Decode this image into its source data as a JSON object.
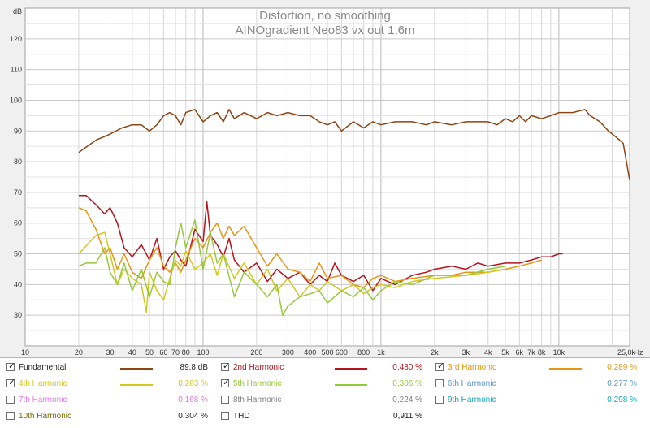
{
  "chart_data": {
    "type": "line",
    "title": "Distortion, no smoothing",
    "subtitle": "AINOgradient Neo83 vx out 1,6m",
    "ylabel": "dB",
    "xunit": "Hz",
    "xscale": "log",
    "xlim": [
      10,
      25000
    ],
    "ylim": [
      20,
      130
    ],
    "grid": true,
    "x_ticks": [
      {
        "v": 10,
        "label": "10"
      },
      {
        "v": 20,
        "label": "20"
      },
      {
        "v": 30,
        "label": "30"
      },
      {
        "v": 40,
        "label": "40"
      },
      {
        "v": 50,
        "label": "50"
      },
      {
        "v": 60,
        "label": "60"
      },
      {
        "v": 70,
        "label": "70"
      },
      {
        "v": 80,
        "label": "80"
      },
      {
        "v": 100,
        "label": "100"
      },
      {
        "v": 200,
        "label": "200"
      },
      {
        "v": 300,
        "label": "300"
      },
      {
        "v": 400,
        "label": "400"
      },
      {
        "v": 500,
        "label": "500"
      },
      {
        "v": 600,
        "label": "600"
      },
      {
        "v": 800,
        "label": "800"
      },
      {
        "v": 1000,
        "label": "1k"
      },
      {
        "v": 2000,
        "label": "2k"
      },
      {
        "v": 3000,
        "label": "3k"
      },
      {
        "v": 4000,
        "label": "4k"
      },
      {
        "v": 5000,
        "label": "5k"
      },
      {
        "v": 6000,
        "label": "6k"
      },
      {
        "v": 7000,
        "label": "7k"
      },
      {
        "v": 8000,
        "label": "8k"
      },
      {
        "v": 10000,
        "label": "10k"
      },
      {
        "v": 25000,
        "label": "25,0k"
      }
    ],
    "y_ticks": [
      30,
      40,
      50,
      60,
      70,
      80,
      90,
      100,
      110,
      120
    ],
    "series": [
      {
        "name": "Fundamental",
        "color": "#8b4513",
        "value": "89,8 dB",
        "checked": true,
        "x": [
          20,
          25,
          30,
          35,
          40,
          45,
          50,
          55,
          60,
          65,
          70,
          75,
          80,
          90,
          100,
          110,
          120,
          130,
          140,
          150,
          170,
          200,
          230,
          260,
          300,
          350,
          400,
          450,
          500,
          550,
          600,
          700,
          800,
          900,
          1000,
          1200,
          1500,
          1800,
          2000,
          2500,
          3000,
          3500,
          4000,
          4500,
          5000,
          5500,
          6000,
          6500,
          7000,
          8000,
          9000,
          10000,
          12000,
          14000,
          15000,
          17000,
          19000,
          21000,
          23000,
          25000
        ],
        "y": [
          83,
          87,
          89,
          91,
          92,
          92,
          90,
          92,
          95,
          96,
          95,
          92,
          96,
          97,
          93,
          95,
          96,
          93,
          97,
          94,
          96,
          94,
          96,
          95,
          96,
          95,
          95,
          93,
          92,
          93,
          90,
          93,
          91,
          93,
          92,
          93,
          93,
          92,
          93,
          92,
          93,
          93,
          93,
          92,
          94,
          93,
          95,
          93,
          95,
          94,
          95,
          96,
          96,
          97,
          95,
          93,
          90,
          88,
          86,
          74
        ]
      },
      {
        "name": "2nd Harmonic",
        "color": "#b4141e",
        "value": "0,480 %",
        "checked": true,
        "x": [
          20,
          22,
          25,
          28,
          30,
          33,
          36,
          40,
          45,
          50,
          55,
          60,
          65,
          70,
          75,
          80,
          90,
          100,
          105,
          110,
          120,
          130,
          140,
          150,
          170,
          200,
          230,
          260,
          300,
          350,
          400,
          450,
          500,
          550,
          600,
          700,
          800,
          900,
          1000,
          1200,
          1500,
          1800,
          2000,
          2500,
          3000,
          3500,
          4000,
          5000,
          6000,
          7000,
          8000,
          9000,
          10000,
          10500
        ],
        "y": [
          69,
          69,
          66,
          63,
          65,
          60,
          52,
          49,
          53,
          48,
          55,
          45,
          49,
          51,
          48,
          46,
          58,
          54,
          67,
          56,
          53,
          49,
          55,
          48,
          44,
          47,
          41,
          45,
          42,
          44,
          40,
          43,
          41,
          47,
          43,
          41,
          43,
          38,
          42,
          40,
          43,
          44,
          45,
          46,
          45,
          47,
          46,
          47,
          47,
          48,
          49,
          49,
          50,
          50
        ]
      },
      {
        "name": "3rd Harmonic",
        "color": "#e69614",
        "value": "0,289 %",
        "checked": true,
        "x": [
          20,
          22,
          25,
          28,
          30,
          33,
          36,
          40,
          45,
          50,
          55,
          60,
          65,
          70,
          75,
          80,
          90,
          100,
          110,
          120,
          130,
          140,
          150,
          170,
          200,
          230,
          260,
          300,
          350,
          400,
          450,
          500,
          600,
          700,
          800,
          900,
          1000,
          1200,
          1500,
          2000,
          2500,
          3000,
          4000,
          5000,
          6000,
          7000,
          8000
        ],
        "y": [
          65,
          64,
          58,
          50,
          52,
          45,
          50,
          44,
          42,
          48,
          52,
          46,
          44,
          47,
          44,
          48,
          55,
          52,
          57,
          60,
          55,
          59,
          56,
          59,
          52,
          46,
          50,
          45,
          44,
          41,
          47,
          42,
          43,
          40,
          39,
          42,
          43,
          41,
          42,
          43,
          43,
          44,
          44,
          45,
          46,
          47,
          48
        ]
      },
      {
        "name": "4th Harmonic",
        "color": "#d2c81e",
        "value": "0,263 %",
        "checked": true,
        "x": [
          20,
          25,
          28,
          30,
          33,
          36,
          40,
          45,
          48,
          50,
          55,
          60,
          65,
          70,
          75,
          80,
          90,
          100,
          110,
          120,
          130,
          150,
          170,
          200,
          230,
          260,
          300,
          350,
          400,
          450,
          500,
          600,
          700,
          800,
          900,
          1000,
          1200,
          1500,
          2000,
          3000,
          4000,
          5000
        ],
        "y": [
          50,
          56,
          57,
          50,
          40,
          45,
          42,
          40,
          31,
          44,
          38,
          35,
          42,
          48,
          46,
          51,
          45,
          47,
          50,
          43,
          50,
          42,
          47,
          40,
          45,
          38,
          42,
          36,
          40,
          38,
          41,
          38,
          40,
          37,
          39,
          40,
          39,
          41,
          42,
          43,
          44,
          45
        ]
      },
      {
        "name": "5th Harmonic",
        "color": "#96c83c",
        "value": "0,306 %",
        "checked": true,
        "x": [
          20,
          22,
          25,
          28,
          30,
          33,
          36,
          40,
          45,
          50,
          55,
          60,
          65,
          70,
          75,
          80,
          90,
          100,
          110,
          120,
          130,
          150,
          170,
          200,
          230,
          260,
          280,
          300,
          350,
          400,
          450,
          500,
          600,
          700,
          800,
          900,
          1000,
          1200,
          1500,
          2000,
          3000,
          4000,
          5000
        ],
        "y": [
          46,
          47,
          47,
          52,
          44,
          40,
          47,
          38,
          45,
          36,
          44,
          41,
          40,
          52,
          60,
          52,
          61,
          45,
          57,
          47,
          50,
          36,
          44,
          40,
          36,
          40,
          30,
          33,
          36,
          37,
          38,
          34,
          38,
          36,
          39,
          35,
          38,
          41,
          40,
          43,
          43,
          45,
          46
        ]
      },
      {
        "name": "6th Harmonic",
        "color": "#5a96c8",
        "value": "0,277 %",
        "checked": false
      },
      {
        "name": "7th Harmonic",
        "color": "#e678e6",
        "value": "0,168 %",
        "checked": false
      },
      {
        "name": "8th Harmonic",
        "color": "#828282",
        "value": "0,224 %",
        "checked": false
      },
      {
        "name": "9th Harmonic",
        "color": "#14aab4",
        "value": "0,298 %",
        "checked": false
      },
      {
        "name": "10th Harmonic",
        "color": "#7a6a00",
        "value": "0,304 %",
        "checked": false
      },
      {
        "name": "THD",
        "color": "#222222",
        "value": "0,911 %",
        "checked": false
      }
    ]
  }
}
